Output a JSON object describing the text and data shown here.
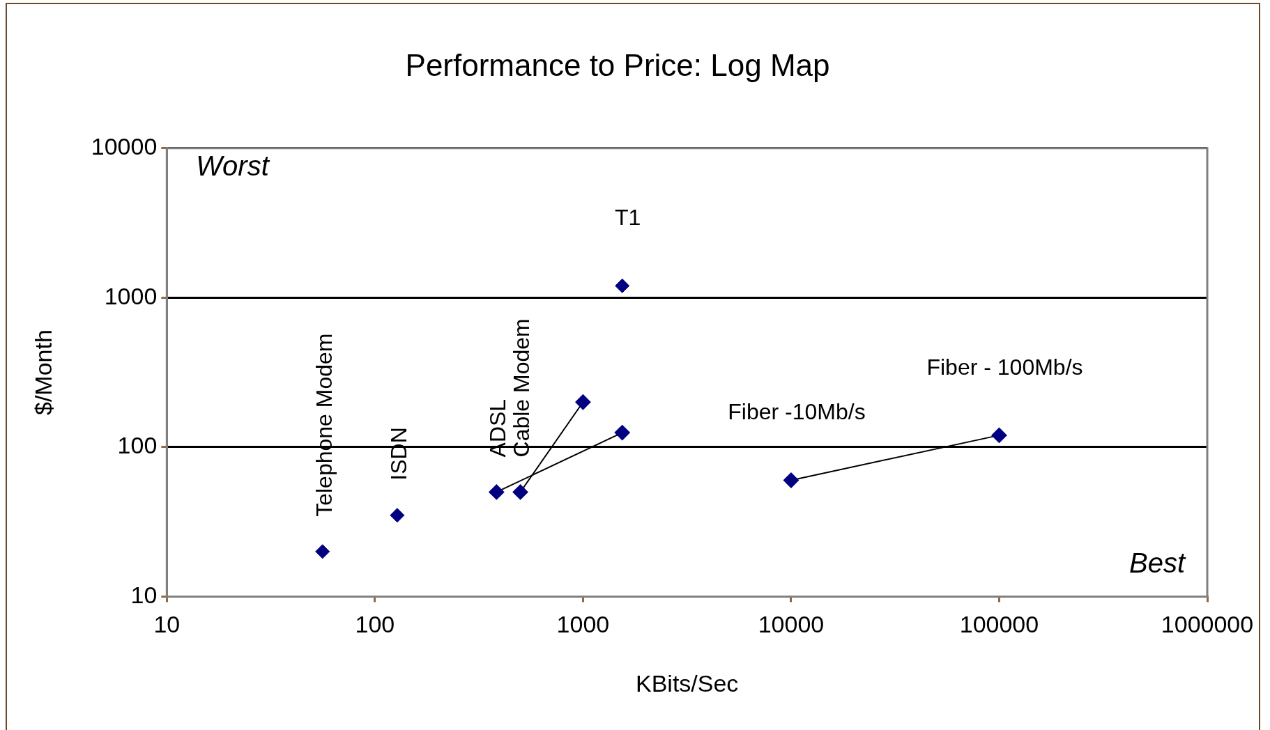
{
  "chart_data": {
    "type": "scatter",
    "title": "Performance to Price: Log Map",
    "xlabel": "KBits/Sec",
    "ylabel": "$/Month",
    "log": "xy",
    "xlim": [
      10,
      1000000
    ],
    "ylim": [
      10,
      10000
    ],
    "xticks": [
      10,
      100,
      1000,
      10000,
      100000,
      1000000
    ],
    "yticks": [
      10,
      100,
      1000,
      10000
    ],
    "grid": "y",
    "legend": false,
    "marker": "diamond",
    "series": [
      {
        "type": "scatter",
        "color": "#000080",
        "x": [
          56
        ],
        "values": [
          20
        ]
      },
      {
        "type": "scatter",
        "color": "#000080",
        "x": [
          128
        ],
        "values": [
          35
        ]
      },
      {
        "type": "line",
        "color": "#000080",
        "x": [
          384,
          1544
        ],
        "values": [
          50,
          125
        ]
      },
      {
        "type": "line",
        "color": "#000080",
        "x": [
          500,
          1000
        ],
        "values": [
          50,
          200
        ]
      },
      {
        "type": "scatter",
        "color": "#000080",
        "x": [
          1544
        ],
        "values": [
          1200
        ]
      },
      {
        "type": "line",
        "color": "#000080",
        "x": [
          10000,
          100000
        ],
        "values": [
          60,
          120
        ]
      }
    ],
    "annotations": [
      "Worst",
      "Best",
      {
        "text": "Telephone Modem",
        "x": 56,
        "y": 20
      },
      {
        "text": "ISDN",
        "x": 128,
        "y": 35
      },
      {
        "text": "ADSL",
        "x": 384,
        "y": 50
      },
      {
        "text": "Cable Modem",
        "x": 500,
        "y": 50
      },
      {
        "text": "T1",
        "x": 1544,
        "y": 1200
      },
      {
        "text": "Fiber -10Mb/s",
        "x": 10000,
        "y": 60
      },
      {
        "text": "Fiber - 100Mb/s",
        "x": 100000,
        "y": 120
      }
    ]
  }
}
